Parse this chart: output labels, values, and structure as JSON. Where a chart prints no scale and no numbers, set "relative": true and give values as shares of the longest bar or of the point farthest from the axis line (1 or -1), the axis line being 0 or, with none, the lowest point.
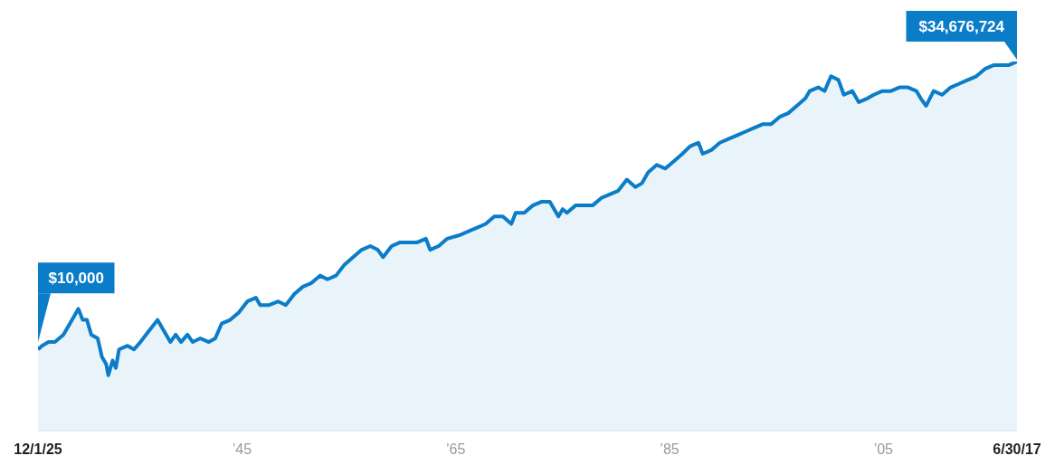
{
  "chart_data": {
    "type": "area",
    "relative": true,
    "color": "#0b7dc8",
    "marker": "none",
    "x": [
      1925.92,
      1926.3,
      1926.9,
      1927.5,
      1928.3,
      1928.9,
      1929.7,
      1930.1,
      1930.5,
      1930.9,
      1931.5,
      1931.9,
      1932.3,
      1932.5,
      1932.9,
      1933.2,
      1933.5,
      1934.3,
      1934.9,
      1935.5,
      1936.3,
      1937.1,
      1937.7,
      1938.3,
      1938.8,
      1939.3,
      1939.9,
      1940.4,
      1941.1,
      1941.9,
      1942.5,
      1943.1,
      1943.9,
      1944.7,
      1945.5,
      1946.3,
      1946.7,
      1947.5,
      1948.4,
      1949.1,
      1949.9,
      1950.7,
      1951.5,
      1952.3,
      1953.0,
      1953.8,
      1954.6,
      1955.4,
      1956.2,
      1957.0,
      1957.7,
      1958.2,
      1959.0,
      1959.8,
      1960.6,
      1961.4,
      1962.2,
      1962.6,
      1963.4,
      1964.2,
      1965.4,
      1966.2,
      1967.0,
      1967.8,
      1968.6,
      1969.4,
      1970.2,
      1970.6,
      1971.4,
      1972.2,
      1973.0,
      1973.8,
      1974.6,
      1975.0,
      1975.4,
      1976.2,
      1977.0,
      1977.8,
      1978.6,
      1979.4,
      1980.2,
      1981.0,
      1981.8,
      1982.4,
      1983.0,
      1983.8,
      1984.6,
      1985.4,
      1986.2,
      1986.9,
      1987.7,
      1988.1,
      1988.9,
      1989.7,
      1990.5,
      1991.3,
      1992.1,
      1992.9,
      1993.7,
      1994.5,
      1995.3,
      1996.1,
      1996.9,
      1997.7,
      1998.1,
      1998.9,
      1999.5,
      2000.1,
      2000.8,
      2001.3,
      2002.1,
      2002.7,
      2003.5,
      2004.1,
      2004.9,
      2005.7,
      2006.5,
      2007.3,
      2008.1,
      2008.5,
      2009.0,
      2009.7,
      2010.5,
      2011.3,
      2012.1,
      2012.9,
      2013.7,
      2014.5,
      2015.3,
      2016.1,
      2016.7,
      2017.5
    ],
    "values": [
      0.22,
      0.23,
      0.24,
      0.24,
      0.26,
      0.29,
      0.33,
      0.3,
      0.3,
      0.26,
      0.25,
      0.2,
      0.18,
      0.15,
      0.19,
      0.17,
      0.22,
      0.23,
      0.22,
      0.24,
      0.27,
      0.3,
      0.27,
      0.24,
      0.26,
      0.24,
      0.26,
      0.24,
      0.25,
      0.24,
      0.25,
      0.29,
      0.3,
      0.32,
      0.35,
      0.36,
      0.34,
      0.34,
      0.35,
      0.34,
      0.37,
      0.39,
      0.4,
      0.42,
      0.41,
      0.42,
      0.45,
      0.47,
      0.49,
      0.5,
      0.49,
      0.47,
      0.5,
      0.51,
      0.51,
      0.51,
      0.52,
      0.49,
      0.5,
      0.52,
      0.53,
      0.54,
      0.55,
      0.56,
      0.58,
      0.58,
      0.56,
      0.59,
      0.59,
      0.61,
      0.62,
      0.62,
      0.58,
      0.6,
      0.59,
      0.61,
      0.61,
      0.61,
      0.63,
      0.64,
      0.65,
      0.68,
      0.66,
      0.67,
      0.7,
      0.72,
      0.71,
      0.73,
      0.75,
      0.77,
      0.78,
      0.75,
      0.76,
      0.78,
      0.79,
      0.8,
      0.81,
      0.82,
      0.83,
      0.83,
      0.85,
      0.86,
      0.88,
      0.9,
      0.92,
      0.93,
      0.92,
      0.96,
      0.95,
      0.91,
      0.92,
      0.89,
      0.9,
      0.91,
      0.92,
      0.92,
      0.93,
      0.93,
      0.92,
      0.9,
      0.88,
      0.92,
      0.91,
      0.93,
      0.94,
      0.95,
      0.96,
      0.98,
      0.99,
      0.99,
      0.99,
      1
    ],
    "xlim": [
      1925.92,
      2017.5
    ],
    "xticks": [
      {
        "value": 1925.92,
        "label": "12/1/25"
      },
      {
        "value": 1945,
        "label": "’45"
      },
      {
        "value": 1965,
        "label": "’65"
      },
      {
        "value": 1985,
        "label": "’85"
      },
      {
        "value": 2005,
        "label": "’05"
      },
      {
        "value": 2017.5,
        "label": "6/30/17"
      }
    ],
    "annotations": [
      {
        "text": "$10,000",
        "x": 1925.92,
        "y": 0.22
      },
      {
        "text": "$34,676,724",
        "x": 2017.5,
        "y": 1
      }
    ]
  }
}
